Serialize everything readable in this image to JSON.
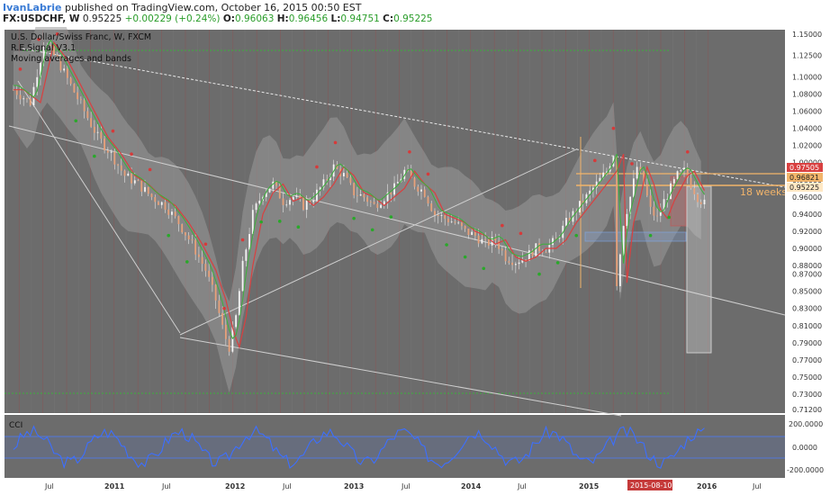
{
  "header": {
    "author": "IvanLabrie",
    "published": "published on TradingView.com, October 16, 2015 00:50 EST",
    "symbol": "FX:USDCHF, W",
    "last": "0.95225",
    "change": "+0.00229 (+0.24%)",
    "o_label": "O:",
    "o": "0.96063",
    "h_label": "H:",
    "h": "0.96456",
    "l_label": "L:",
    "l": "0.94751",
    "c_label": "C:",
    "c": "0.95225"
  },
  "chart_data": {
    "type": "candlestick",
    "title": "U.S. Dollar/Swiss Franc, W, FXCM",
    "studies": [
      "R.E.Signal V3.1",
      "Moving averages and bands"
    ],
    "x_ticks": [
      "Jul",
      "2011",
      "Jul",
      "2012",
      "Jul",
      "2013",
      "Jul",
      "2014",
      "Jul",
      "2015",
      "2015-08-10",
      "2016",
      "Jul"
    ],
    "y_ticks": [
      "1.15000",
      "1.12500",
      "1.10000",
      "1.08000",
      "1.06000",
      "1.04000",
      "1.02000",
      "1.00000",
      "0.98000",
      "0.96000",
      "0.94000",
      "0.92000",
      "0.90000",
      "0.88000",
      "0.87000",
      "0.85000",
      "0.83000",
      "0.81000",
      "0.79000",
      "0.77000",
      "0.75000",
      "0.73000",
      "0.71200"
    ],
    "price_labels": [
      "0.97505",
      "0.96821",
      "0.95225"
    ],
    "annotation": "18 weeks",
    "price_path": [
      [
        0,
        1.085
      ],
      [
        10,
        1.07
      ],
      [
        18,
        1.14
      ],
      [
        26,
        1.12
      ],
      [
        34,
        1.09
      ],
      [
        42,
        1.06
      ],
      [
        50,
        1.03
      ],
      [
        58,
        1.01
      ],
      [
        66,
        0.985
      ],
      [
        74,
        0.975
      ],
      [
        82,
        0.96
      ],
      [
        90,
        0.95
      ],
      [
        98,
        0.93
      ],
      [
        106,
        0.905
      ],
      [
        114,
        0.875
      ],
      [
        120,
        0.84
      ],
      [
        125,
        0.8
      ],
      [
        128,
        0.785
      ],
      [
        132,
        0.82
      ],
      [
        136,
        0.88
      ],
      [
        142,
        0.94
      ],
      [
        148,
        0.965
      ],
      [
        154,
        0.975
      ],
      [
        160,
        0.955
      ],
      [
        166,
        0.96
      ],
      [
        172,
        0.95
      ],
      [
        178,
        0.96
      ],
      [
        184,
        0.975
      ],
      [
        190,
        0.995
      ],
      [
        196,
        0.985
      ],
      [
        202,
        0.965
      ],
      [
        208,
        0.96
      ],
      [
        214,
        0.95
      ],
      [
        220,
        0.96
      ],
      [
        226,
        0.97
      ],
      [
        232,
        0.99
      ],
      [
        238,
        0.975
      ],
      [
        244,
        0.965
      ],
      [
        250,
        0.94
      ],
      [
        256,
        0.935
      ],
      [
        262,
        0.93
      ],
      [
        268,
        0.92
      ],
      [
        274,
        0.915
      ],
      [
        280,
        0.905
      ],
      [
        286,
        0.91
      ],
      [
        292,
        0.89
      ],
      [
        298,
        0.885
      ],
      [
        304,
        0.89
      ],
      [
        310,
        0.9
      ],
      [
        316,
        0.9
      ],
      [
        322,
        0.91
      ],
      [
        328,
        0.93
      ],
      [
        334,
        0.945
      ],
      [
        340,
        0.96
      ],
      [
        346,
        0.975
      ],
      [
        352,
        0.99
      ],
      [
        356,
        1.01
      ],
      [
        358,
        0.86
      ],
      [
        362,
        0.93
      ],
      [
        366,
        0.96
      ],
      [
        370,
        0.995
      ],
      [
        374,
        0.975
      ],
      [
        378,
        0.945
      ],
      [
        382,
        0.935
      ],
      [
        386,
        0.955
      ],
      [
        390,
        0.97
      ],
      [
        394,
        0.985
      ],
      [
        398,
        0.99
      ],
      [
        402,
        0.975
      ],
      [
        406,
        0.96
      ],
      [
        410,
        0.952
      ]
    ],
    "cci": {
      "label": "CCI",
      "y_ticks": [
        "200.0000",
        "0.0000",
        "-200.0000"
      ],
      "band": [
        100,
        -100
      ]
    },
    "last_date_label": "2015-08-10",
    "colors": {
      "background": "#6c6c6c",
      "band": "#8a8a8a",
      "cci_line": "#3c6fff",
      "signal_red": "#d63a3a",
      "signal_green": "#2aa82a",
      "highlight": "#f2b46a"
    }
  }
}
